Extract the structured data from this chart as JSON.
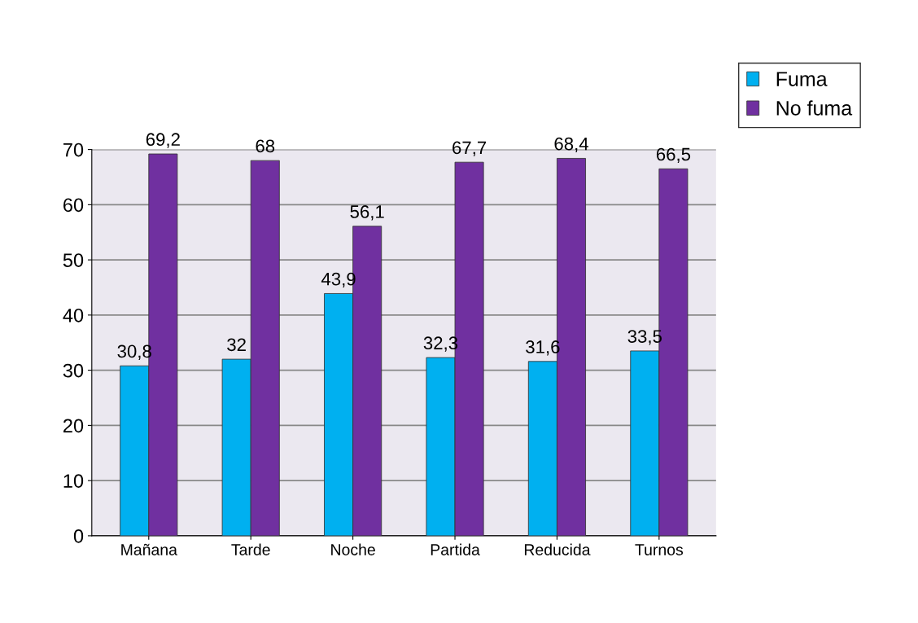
{
  "chart_data": {
    "type": "bar",
    "categories": [
      "Mañana",
      "Tarde",
      "Noche",
      "Partida",
      "Reducida",
      "Turnos"
    ],
    "series": [
      {
        "name": "Fuma",
        "color": "#00b0f0",
        "values": [
          30.8,
          32,
          43.9,
          32.3,
          31.6,
          33.5
        ],
        "value_labels": [
          "30,8",
          "32",
          "43,9",
          "32,3",
          "31,6",
          "33,5"
        ]
      },
      {
        "name": "No fuma",
        "color": "#7030a0",
        "values": [
          69.2,
          68,
          56.1,
          67.7,
          68.4,
          66.5
        ],
        "value_labels": [
          "69,2",
          "68",
          "56,1",
          "67,7",
          "68,4",
          "66,5"
        ]
      }
    ],
    "ylim": [
      0,
      70
    ],
    "yticks": [
      0,
      10,
      20,
      30,
      40,
      50,
      60,
      70
    ],
    "grid": "y",
    "legend": "top right"
  }
}
